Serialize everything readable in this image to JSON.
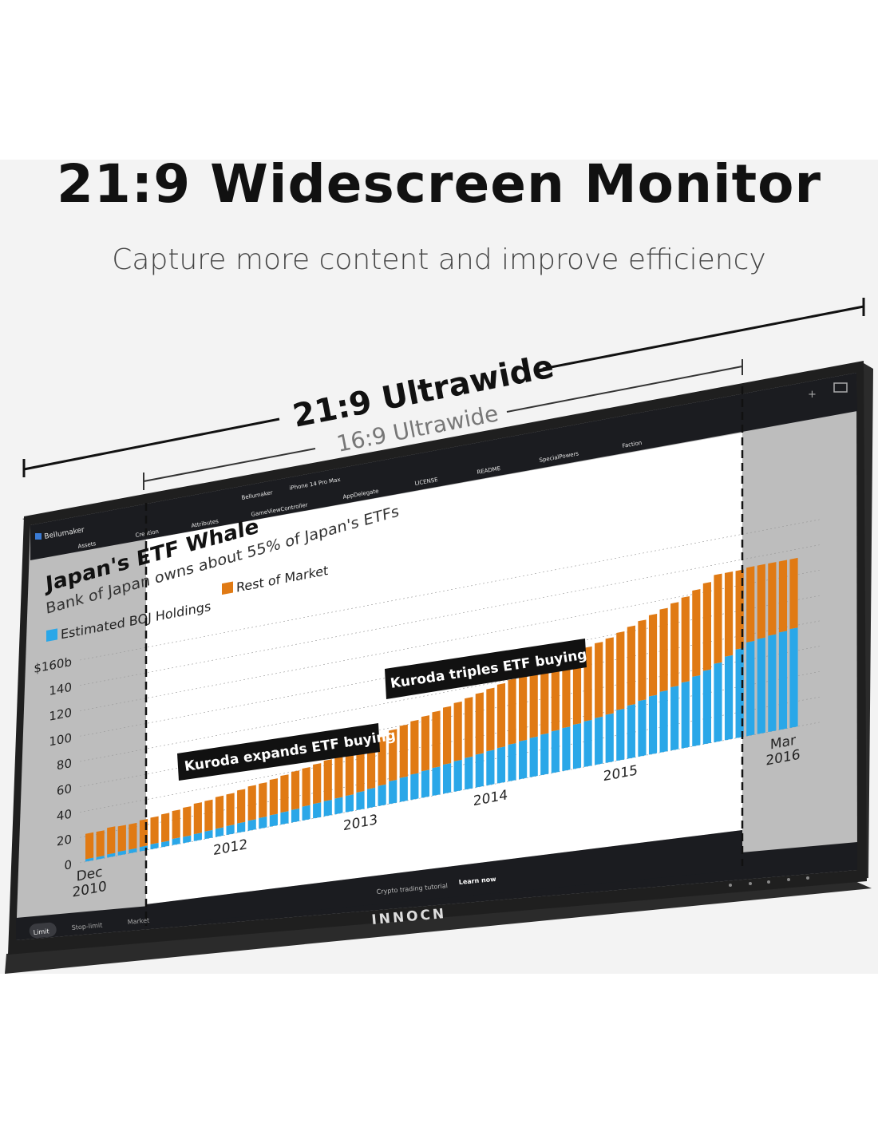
{
  "hero": {
    "title": "21:9 Widescreen Monitor",
    "subtitle": "Capture more content and improve efficiency"
  },
  "dimension_labels": {
    "wide": "21:9 Ultrawide",
    "narrow": "16:9 Ultrawide"
  },
  "monitor": {
    "brand": "INNOCN",
    "screen": {
      "app_name": "Bellumaker",
      "breadcrumb_project": "Bellumaker",
      "breadcrumb_device": "iPhone 14 Pro Max",
      "sidebar_tabs": [
        "Assets",
        "Creation"
      ],
      "editor_tabs_row1": [
        "Attributes",
        "GameViewController",
        "AppDelegate",
        "LICENSE",
        "README",
        "SpecialPowers",
        "Faction"
      ],
      "footer_text": "Crypto trading tutorial",
      "footer_link": "Learn now",
      "order_buttons": [
        "Limit",
        "Stop-limit",
        "Market"
      ]
    }
  },
  "chart_data": {
    "type": "bar",
    "title": "Japan's ETF Whale",
    "subtitle": "Bank of Japan owns about 55% of Japan's ETFs",
    "legend": [
      {
        "name": "Estimated BOJ Holdings",
        "color": "#2aa7e8"
      },
      {
        "name": "Rest of Market",
        "color": "#e07a14"
      }
    ],
    "y_ticks": [
      "$160b",
      "140",
      "120",
      "100",
      "80",
      "60",
      "40",
      "20",
      "0"
    ],
    "ylim": [
      0,
      160
    ],
    "x_labels": [
      {
        "label": "Dec",
        "label2": "2010",
        "index": 0
      },
      {
        "label": "2012",
        "label2": "",
        "index": 13
      },
      {
        "label": "2013",
        "label2": "",
        "index": 25
      },
      {
        "label": "2014",
        "label2": "",
        "index": 37
      },
      {
        "label": "2015",
        "label2": "",
        "index": 49
      },
      {
        "label": "Mar",
        "label2": "2016",
        "index": 64
      }
    ],
    "annotations": [
      "Kuroda expands ETF buying",
      "Kuroda triples ETF buying"
    ],
    "series": [
      {
        "name": "Estimated BOJ Holdings",
        "values": [
          2,
          2,
          2.5,
          3,
          3,
          3.5,
          4,
          4,
          5,
          5,
          5.5,
          6,
          6.5,
          7,
          7.5,
          8,
          8.5,
          9,
          9.5,
          10,
          11,
          11.5,
          12,
          12.5,
          13,
          14,
          15,
          16,
          18,
          19,
          20,
          21,
          22,
          23,
          24,
          25,
          26,
          27,
          28,
          29,
          30,
          31,
          32,
          33,
          34,
          35,
          36,
          37,
          38,
          40,
          42,
          44,
          46,
          48,
          50,
          52,
          55,
          58,
          62,
          66,
          70,
          74,
          75,
          76,
          77,
          78
        ]
      },
      {
        "name": "Rest of Market",
        "values": [
          20,
          20,
          21,
          20,
          20,
          21,
          21,
          22,
          22,
          23,
          24,
          24,
          25,
          25,
          26,
          27,
          27,
          28,
          29,
          30,
          30,
          31,
          32,
          33,
          33,
          34,
          36,
          38,
          40,
          41,
          42,
          43,
          44,
          45,
          46,
          47,
          48,
          49,
          50,
          51,
          52,
          53,
          54,
          55,
          56,
          57,
          58,
          59,
          60,
          61,
          62,
          63,
          64,
          65,
          66,
          67,
          68,
          69,
          70,
          66,
          62,
          59,
          58,
          57,
          56,
          55
        ]
      }
    ]
  }
}
